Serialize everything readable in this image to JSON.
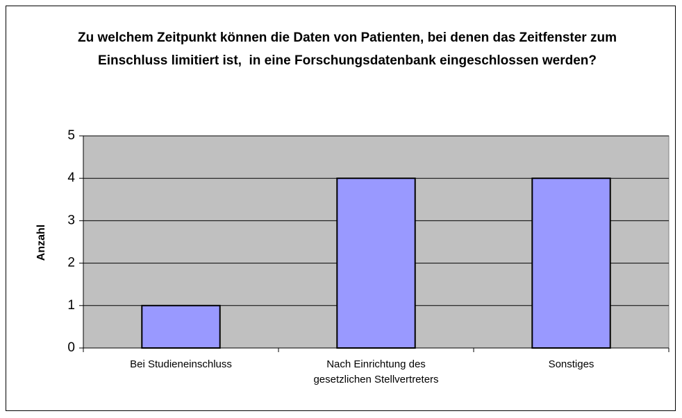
{
  "chart_data": {
    "type": "bar",
    "title": "Zu welchem Zeitpunkt können die Daten von Patienten, bei denen das Zeitfenster zum Einschluss limitiert ist,  in eine Forschungsdatenbank eingeschlossen werden?",
    "y_label": "Anzahl",
    "categories": [
      "Bei Studieneinschluss",
      "Nach Einrichtung des gesetzlichen Stellvertreters",
      "Sonstiges"
    ],
    "values": [
      1,
      4,
      4
    ],
    "color": "#9999ff",
    "ylim": [
      0,
      5
    ],
    "yticks": [
      0,
      1,
      2,
      3,
      4,
      5
    ],
    "grid": true
  }
}
